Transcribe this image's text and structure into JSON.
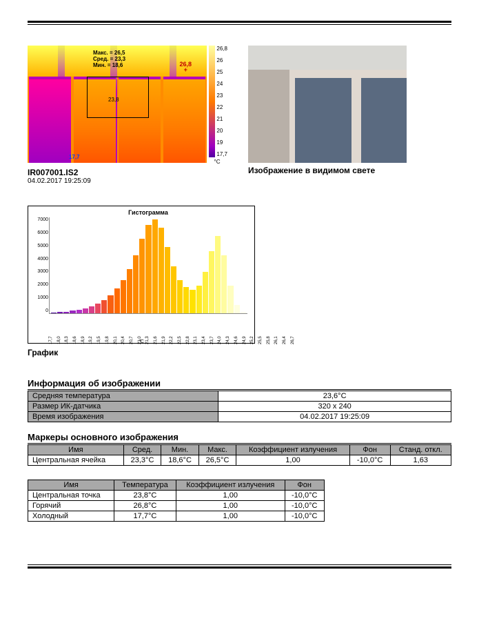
{
  "thermal": {
    "filename": "IR007001.IS2",
    "timestamp": "04.02.2017 19:25:09",
    "overlay_stats": "Макс. = 26,5\nСред. = 23,3\nМин. = 18,6",
    "hot_marker": "26,8",
    "center_marker": "23,8",
    "cold_marker": "17,7",
    "scale_ticks": [
      "26,8",
      "26",
      "25",
      "24",
      "23",
      "22",
      "21",
      "20",
      "19",
      "17,7"
    ],
    "scale_unit": "°C"
  },
  "visible_caption": "Изображение в видимом свете",
  "chart": {
    "title": "Гистограмма",
    "caption": "График",
    "y_ticks": [
      "7000",
      "6000",
      "5000",
      "4000",
      "3000",
      "2000",
      "1000",
      "0"
    ],
    "y_max": 7000,
    "x_unit": "°C",
    "bars": [
      {
        "x": "17,7",
        "v": 50,
        "c": "#5010a0"
      },
      {
        "x": "18,0",
        "v": 80,
        "c": "#7018b0"
      },
      {
        "x": "18,3",
        "v": 120,
        "c": "#8820b8"
      },
      {
        "x": "18,6",
        "v": 180,
        "c": "#9a28c0"
      },
      {
        "x": "18,9",
        "v": 250,
        "c": "#b030c8"
      },
      {
        "x": "19,2",
        "v": 350,
        "c": "#c838a8"
      },
      {
        "x": "19,5",
        "v": 500,
        "c": "#d84088"
      },
      {
        "x": "19,8",
        "v": 700,
        "c": "#e84860"
      },
      {
        "x": "20,1",
        "v": 950,
        "c": "#f05030"
      },
      {
        "x": "20,4",
        "v": 1300,
        "c": "#f86010"
      },
      {
        "x": "20,7",
        "v": 1800,
        "c": "#ff6a00"
      },
      {
        "x": "21,0",
        "v": 2400,
        "c": "#ff7600"
      },
      {
        "x": "21,3",
        "v": 3200,
        "c": "#ff8000"
      },
      {
        "x": "21,6",
        "v": 4200,
        "c": "#ff8a00"
      },
      {
        "x": "21,9",
        "v": 5400,
        "c": "#ff9400"
      },
      {
        "x": "22,2",
        "v": 6400,
        "c": "#ff9e00"
      },
      {
        "x": "22,5",
        "v": 6800,
        "c": "#ffa800"
      },
      {
        "x": "22,8",
        "v": 6200,
        "c": "#ffb200"
      },
      {
        "x": "23,1",
        "v": 4800,
        "c": "#ffbc00"
      },
      {
        "x": "23,4",
        "v": 3400,
        "c": "#ffc600"
      },
      {
        "x": "23,7",
        "v": 2400,
        "c": "#ffd000"
      },
      {
        "x": "24,0",
        "v": 1900,
        "c": "#ffda00"
      },
      {
        "x": "24,3",
        "v": 1700,
        "c": "#ffe200"
      },
      {
        "x": "24,6",
        "v": 2000,
        "c": "#ffea20"
      },
      {
        "x": "24,9",
        "v": 3000,
        "c": "#fff040"
      },
      {
        "x": "25,2",
        "v": 4500,
        "c": "#fff660"
      },
      {
        "x": "25,5",
        "v": 5600,
        "c": "#fffa80"
      },
      {
        "x": "25,8",
        "v": 4200,
        "c": "#fffca0"
      },
      {
        "x": "26,1",
        "v": 2000,
        "c": "#fffec0"
      },
      {
        "x": "26,4",
        "v": 600,
        "c": "#ffffe0"
      },
      {
        "x": "26,7",
        "v": 100,
        "c": "#fffff0"
      }
    ]
  },
  "info": {
    "heading": "Информация об изображении",
    "rows": [
      {
        "label": "Средняя температура",
        "value": "23,6°C"
      },
      {
        "label": "Размер ИК-датчика",
        "value": "320 x 240"
      },
      {
        "label": "Время изображения",
        "value": "04.02.2017 19:25:09"
      }
    ]
  },
  "markers": {
    "heading": "Маркеры основного изображения",
    "headers": [
      "Имя",
      "Сред.",
      "Мин.",
      "Макс.",
      "Коэффициент излучения",
      "Фон",
      "Станд. откл."
    ],
    "rows": [
      {
        "name": "Центральная ячейка",
        "avg": "23,3°C",
        "min": "18,6°C",
        "max": "26,5°C",
        "emiss": "1,00",
        "bg": "-10,0°C",
        "std": "1,63"
      }
    ]
  },
  "points": {
    "headers": [
      "Имя",
      "Температура",
      "Коэффициент излучения",
      "Фон"
    ],
    "rows": [
      {
        "name": "Центральная точка",
        "temp": "23,8°C",
        "emiss": "1,00",
        "bg": "-10,0°C"
      },
      {
        "name": "Горячий",
        "temp": "26,8°C",
        "emiss": "1,00",
        "bg": "-10,0°C"
      },
      {
        "name": "Холодный",
        "temp": "17,7°C",
        "emiss": "1,00",
        "bg": "-10,0°C"
      }
    ]
  }
}
